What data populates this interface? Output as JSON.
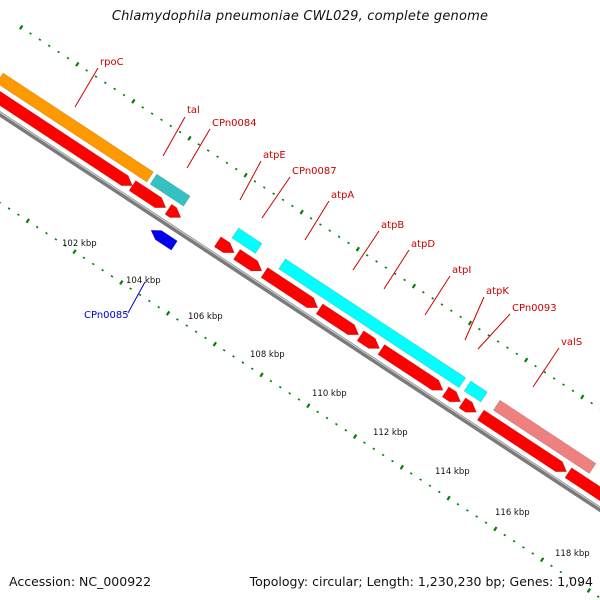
{
  "title": "Chlamydophila pneumoniae CWL029, complete genome",
  "footer": {
    "accession": "Accession: NC_000922",
    "topology": "Topology: circular; Length: 1,230,230 bp; Genes: 1,094"
  },
  "colors": {
    "forward_label": "#cc0000",
    "reverse_label": "#0000cc",
    "backbone": "#808080",
    "tick": "#008000",
    "cds": "#ff0000",
    "orange_feature": "#ff9900",
    "teal_feature": "#33c1c1",
    "cyan_feature": "#00ffff",
    "pink_feature": "#ee8080",
    "blue_feature": "#0000ee"
  },
  "gene_labels": [
    {
      "name": "rpoC",
      "strand": "forward"
    },
    {
      "name": "tal",
      "strand": "forward"
    },
    {
      "name": "CPn0084",
      "strand": "forward"
    },
    {
      "name": "atpE",
      "strand": "forward"
    },
    {
      "name": "CPn0087",
      "strand": "forward"
    },
    {
      "name": "atpA",
      "strand": "forward"
    },
    {
      "name": "atpB",
      "strand": "forward"
    },
    {
      "name": "atpD",
      "strand": "forward"
    },
    {
      "name": "atpI",
      "strand": "forward"
    },
    {
      "name": "atpK",
      "strand": "forward"
    },
    {
      "name": "CPn0093",
      "strand": "forward"
    },
    {
      "name": "valS",
      "strand": "forward"
    },
    {
      "name": "CPn0085",
      "strand": "reverse"
    }
  ],
  "scale_labels": [
    "102 kbp",
    "104 kbp",
    "106 kbp",
    "108 kbp",
    "110 kbp",
    "112 kbp",
    "114 kbp",
    "116 kbp",
    "118 kbp"
  ]
}
